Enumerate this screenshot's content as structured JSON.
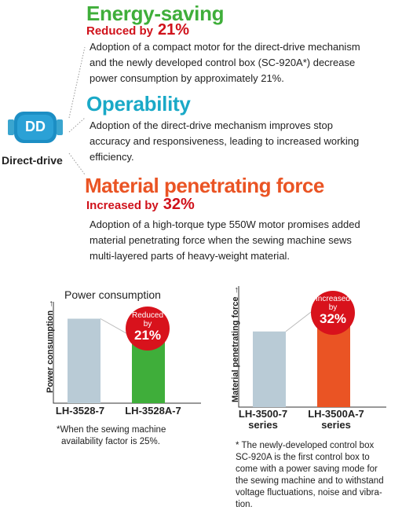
{
  "drive": {
    "icon_text": "DD",
    "label": "Direct-drive"
  },
  "features": {
    "energy": {
      "title": "Energy-saving",
      "sub_label": "Reduced by",
      "sub_value": "21%",
      "text_lines": [
        "Adoption of a compact motor for the direct-drive mechanism",
        "and the newly developed control box (SC-920A*) decrease",
        "power consumption by approximately 21%."
      ]
    },
    "operability": {
      "title": "Operability",
      "text_lines": [
        "Adoption of the direct-drive mechanism improves stop",
        "accuracy and responsiveness, leading to increased working",
        "efficiency."
      ]
    },
    "force": {
      "title": "Material penetrating force",
      "sub_label": "Increased by",
      "sub_value": "32%",
      "text_lines": [
        "Adoption of a high-torque type 550W motor promises added",
        "material penetrating force when the sewing machine sews",
        "multi-layered parts of heavy-weight material."
      ]
    }
  },
  "colors": {
    "green": "#3fae3a",
    "teal": "#1aa9c7",
    "orange": "#ea5424",
    "red": "#d0121b",
    "bar_gray": "#b9cbd6"
  },
  "chart_data": [
    {
      "type": "bar",
      "title": "Power consumption",
      "ylabel": "Power consumption",
      "categories": [
        "LH-3528-7",
        "LH-3528A-7"
      ],
      "values": [
        100,
        79
      ],
      "ylim": [
        0,
        120
      ],
      "bar_colors": [
        "#b9cbd6",
        "#3fae3a"
      ],
      "badge": {
        "line1": "Reduced",
        "line2": "by",
        "value": "21%"
      },
      "note_lines": [
        "*When the sewing machine",
        "availability factor is 25%."
      ]
    },
    {
      "type": "bar",
      "title": "",
      "ylabel": "Material penetrating force",
      "categories": [
        "LH-3500-7 series",
        "LH-3500A-7 series"
      ],
      "category_lines": [
        [
          "LH-3500-7",
          "series"
        ],
        [
          "LH-3500A-7",
          "series"
        ]
      ],
      "values": [
        100,
        132
      ],
      "ylim": [
        0,
        160
      ],
      "bar_colors": [
        "#b9cbd6",
        "#ea5424"
      ],
      "badge": {
        "line1": "Increased",
        "line2": "by",
        "value": "32%"
      },
      "note_lines": [
        "* The newly-developed control box",
        "SC-920A is the first control box to",
        "come with a power saving mode for",
        "the sewing machine and to withstand",
        "voltage fluctuations, noise and vibra-",
        "tion."
      ]
    }
  ]
}
